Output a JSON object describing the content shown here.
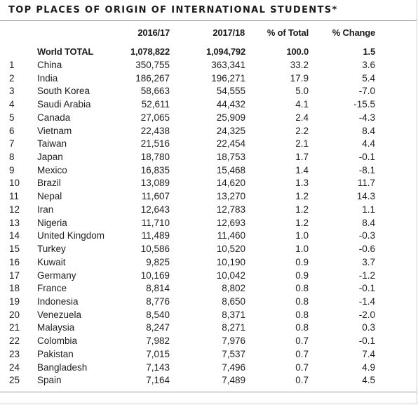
{
  "title": "TOP PLACES OF ORIGIN OF INTERNATIONAL STUDENTS*",
  "headers": {
    "year1": "2016/17",
    "year2": "2017/18",
    "pct": "% of Total",
    "change": "% Change"
  },
  "total": {
    "label": "World TOTAL",
    "year1": "1,078,822",
    "year2": "1,094,792",
    "pct": "100.0",
    "change": "1.5"
  },
  "rows": [
    {
      "rank": "1",
      "country": "China",
      "year1": "350,755",
      "year2": "363,341",
      "pct": "33.2",
      "change": "3.6"
    },
    {
      "rank": "2",
      "country": "India",
      "year1": "186,267",
      "year2": "196,271",
      "pct": "17.9",
      "change": "5.4"
    },
    {
      "rank": "3",
      "country": "South Korea",
      "year1": "58,663",
      "year2": "54,555",
      "pct": "5.0",
      "change": "-7.0"
    },
    {
      "rank": "4",
      "country": "Saudi Arabia",
      "year1": "52,611",
      "year2": "44,432",
      "pct": "4.1",
      "change": "-15.5"
    },
    {
      "rank": "5",
      "country": "Canada",
      "year1": "27,065",
      "year2": "25,909",
      "pct": "2.4",
      "change": "-4.3"
    },
    {
      "rank": "6",
      "country": "Vietnam",
      "year1": "22,438",
      "year2": "24,325",
      "pct": "2.2",
      "change": "8.4"
    },
    {
      "rank": "7",
      "country": "Taiwan",
      "year1": "21,516",
      "year2": "22,454",
      "pct": "2.1",
      "change": "4.4"
    },
    {
      "rank": "8",
      "country": "Japan",
      "year1": "18,780",
      "year2": "18,753",
      "pct": "1.7",
      "change": "-0.1"
    },
    {
      "rank": "9",
      "country": "Mexico",
      "year1": "16,835",
      "year2": "15,468",
      "pct": "1.4",
      "change": "-8.1"
    },
    {
      "rank": "10",
      "country": "Brazil",
      "year1": "13,089",
      "year2": "14,620",
      "pct": "1.3",
      "change": "11.7"
    },
    {
      "rank": "11",
      "country": "Nepal",
      "year1": "11,607",
      "year2": "13,270",
      "pct": "1.2",
      "change": "14.3"
    },
    {
      "rank": "12",
      "country": "Iran",
      "year1": "12,643",
      "year2": "12,783",
      "pct": "1.2",
      "change": "1.1"
    },
    {
      "rank": "13",
      "country": "Nigeria",
      "year1": "11,710",
      "year2": "12,693",
      "pct": "1.2",
      "change": "8.4"
    },
    {
      "rank": "14",
      "country": "United Kingdom",
      "year1": "11,489",
      "year2": "11,460",
      "pct": "1.0",
      "change": "-0.3"
    },
    {
      "rank": "15",
      "country": "Turkey",
      "year1": "10,586",
      "year2": "10,520",
      "pct": "1.0",
      "change": "-0.6"
    },
    {
      "rank": "16",
      "country": "Kuwait",
      "year1": "9,825",
      "year2": "10,190",
      "pct": "0.9",
      "change": "3.7"
    },
    {
      "rank": "17",
      "country": "Germany",
      "year1": "10,169",
      "year2": "10,042",
      "pct": "0.9",
      "change": "-1.2"
    },
    {
      "rank": "18",
      "country": "France",
      "year1": "8,814",
      "year2": "8,802",
      "pct": "0.8",
      "change": "-0.1"
    },
    {
      "rank": "19",
      "country": "Indonesia",
      "year1": "8,776",
      "year2": "8,650",
      "pct": "0.8",
      "change": "-1.4"
    },
    {
      "rank": "20",
      "country": "Venezuela",
      "year1": "8,540",
      "year2": "8,371",
      "pct": "0.8",
      "change": "-2.0"
    },
    {
      "rank": "21",
      "country": "Malaysia",
      "year1": "8,247",
      "year2": "8,271",
      "pct": "0.8",
      "change": "0.3"
    },
    {
      "rank": "22",
      "country": "Colombia",
      "year1": "7,982",
      "year2": "7,976",
      "pct": "0.7",
      "change": "-0.1"
    },
    {
      "rank": "23",
      "country": "Pakistan",
      "year1": "7,015",
      "year2": "7,537",
      "pct": "0.7",
      "change": "7.4"
    },
    {
      "rank": "24",
      "country": "Bangladesh",
      "year1": "7,143",
      "year2": "7,496",
      "pct": "0.7",
      "change": "4.9"
    },
    {
      "rank": "25",
      "country": "Spain",
      "year1": "7,164",
      "year2": "7,489",
      "pct": "0.7",
      "change": "4.5"
    }
  ]
}
